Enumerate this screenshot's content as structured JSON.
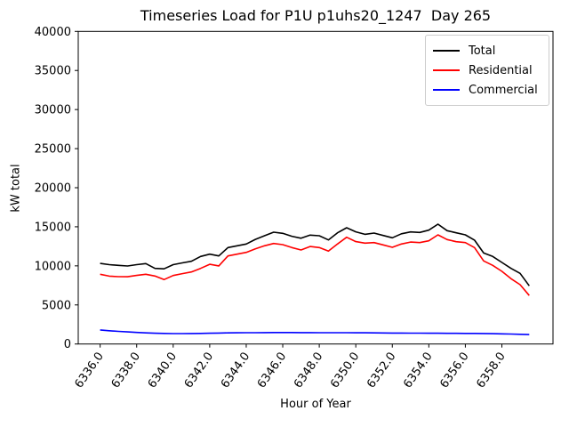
{
  "chart_data": {
    "type": "line",
    "title": "Timeseries Load for P1U p1uhs20_1247  Day 265",
    "xlabel": "Hour of Year",
    "ylabel": "kW total",
    "xlim": [
      6334.8,
      6360.8
    ],
    "ylim": [
      0,
      40000
    ],
    "xticks": [
      6336,
      6338,
      6340,
      6342,
      6344,
      6346,
      6348,
      6350,
      6352,
      6354,
      6356,
      6358
    ],
    "xtick_labels": [
      "6336.0",
      "6338.0",
      "6340.0",
      "6342.0",
      "6344.0",
      "6346.0",
      "6348.0",
      "6350.0",
      "6352.0",
      "6354.0",
      "6356.0",
      "6358.0"
    ],
    "yticks": [
      0,
      5000,
      10000,
      15000,
      20000,
      25000,
      30000,
      35000,
      40000
    ],
    "ytick_labels": [
      "0",
      "5000",
      "10000",
      "15000",
      "20000",
      "25000",
      "30000",
      "35000",
      "40000"
    ],
    "grid": false,
    "legend_position": "upper right",
    "x": [
      6336.0,
      6336.5,
      6337.0,
      6337.5,
      6338.0,
      6338.5,
      6339.0,
      6339.5,
      6340.0,
      6340.5,
      6341.0,
      6341.5,
      6342.0,
      6342.5,
      6343.0,
      6343.5,
      6344.0,
      6344.5,
      6345.0,
      6345.5,
      6346.0,
      6346.5,
      6347.0,
      6347.5,
      6348.0,
      6348.5,
      6349.0,
      6349.5,
      6350.0,
      6350.5,
      6351.0,
      6351.5,
      6352.0,
      6352.5,
      6353.0,
      6353.5,
      6354.0,
      6354.5,
      6355.0,
      6355.5,
      6356.0,
      6356.5,
      6357.0,
      6357.5,
      6358.0,
      6358.5,
      6359.0,
      6359.5
    ],
    "series": [
      {
        "name": "Total",
        "color": "#000000",
        "values": [
          10310,
          10150,
          10060,
          9980,
          10150,
          10290,
          9680,
          9620,
          10150,
          10380,
          10590,
          11200,
          11500,
          11270,
          12340,
          12570,
          12790,
          13390,
          13850,
          14310,
          14160,
          13780,
          13540,
          13930,
          13850,
          13320,
          14230,
          14880,
          14350,
          14040,
          14200,
          13890,
          13590,
          14100,
          14340,
          14270,
          14570,
          15330,
          14500,
          14230,
          13970,
          13290,
          11650,
          11200,
          10440,
          9680,
          9040,
          7450
        ]
      },
      {
        "name": "Residential",
        "color": "#ff0000",
        "values": [
          8920,
          8680,
          8620,
          8600,
          8780,
          8920,
          8700,
          8240,
          8770,
          9000,
          9220,
          9680,
          10200,
          10000,
          11270,
          11500,
          11720,
          12180,
          12570,
          12860,
          12710,
          12340,
          12030,
          12480,
          12340,
          11880,
          12790,
          13660,
          13100,
          12910,
          12980,
          12680,
          12370,
          12800,
          13050,
          12980,
          13210,
          13970,
          13360,
          13090,
          12980,
          12340,
          10630,
          10060,
          9300,
          8350,
          7590,
          6200
        ]
      },
      {
        "name": "Commercial",
        "color": "#0000ff",
        "values": [
          1800,
          1700,
          1620,
          1550,
          1480,
          1420,
          1380,
          1350,
          1330,
          1330,
          1340,
          1350,
          1380,
          1400,
          1420,
          1430,
          1440,
          1450,
          1460,
          1470,
          1470,
          1470,
          1460,
          1460,
          1450,
          1450,
          1440,
          1440,
          1430,
          1430,
          1420,
          1410,
          1400,
          1400,
          1390,
          1390,
          1380,
          1380,
          1370,
          1370,
          1360,
          1350,
          1340,
          1320,
          1300,
          1270,
          1240,
          1210
        ]
      }
    ]
  }
}
